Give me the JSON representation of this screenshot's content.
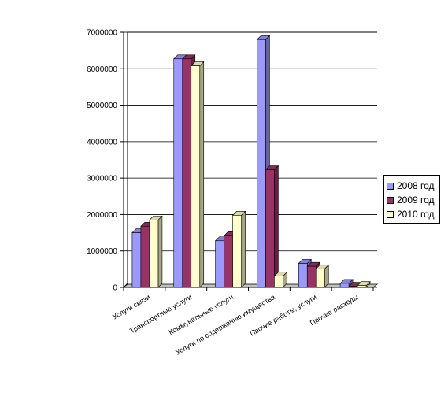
{
  "chart_data": {
    "type": "bar",
    "categories": [
      "Услуги связи",
      "Транспортные услуги",
      "Коммунальные услуги",
      "Услуги по содержанию имущества",
      "Прочие работы, услуги",
      "Прочие расходы"
    ],
    "series": [
      {
        "name": "2008 год",
        "color": "#9999ff",
        "values": [
          1500000,
          6270000,
          1280000,
          6800000,
          660000,
          110000
        ]
      },
      {
        "name": "2009 год",
        "color": "#993366",
        "values": [
          1680000,
          6270000,
          1420000,
          3230000,
          580000,
          30000
        ]
      },
      {
        "name": "2010 год",
        "color": "#ffffcc",
        "values": [
          1850000,
          6080000,
          1980000,
          310000,
          510000,
          50000
        ]
      }
    ],
    "y_ticks": [
      "0",
      "1000000",
      "2000000",
      "3000000",
      "4000000",
      "5000000",
      "6000000",
      "7000000"
    ],
    "ylim": [
      0,
      7000000
    ],
    "grid": true,
    "legend_position": "right",
    "style": "3d-clustered-columns"
  }
}
